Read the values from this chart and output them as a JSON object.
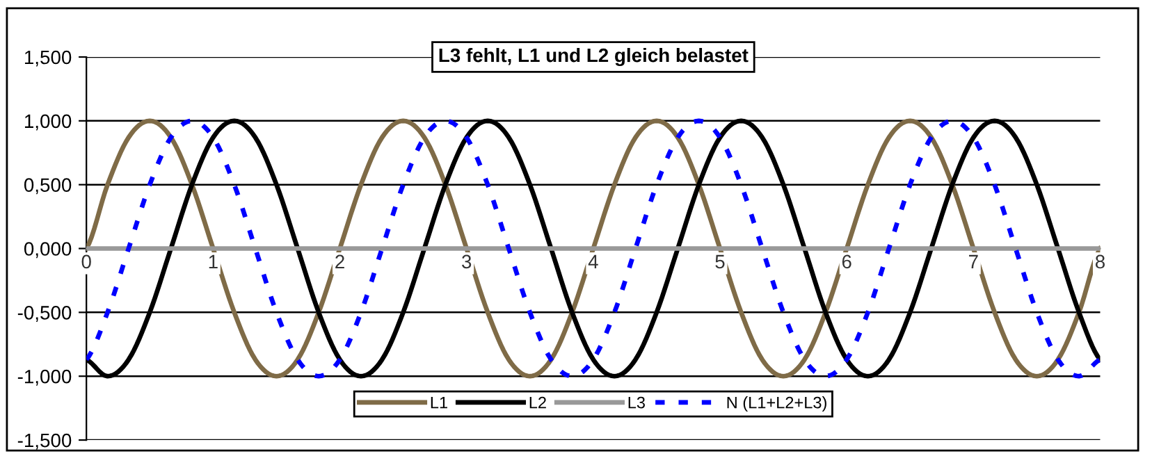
{
  "chart_data": {
    "type": "line",
    "title": "L3 fehlt, L1 und L2 gleich belastet",
    "x": [
      0,
      0.167,
      0.333,
      0.5,
      0.667,
      0.833,
      1,
      1.167,
      1.333,
      1.5,
      1.667,
      1.833,
      2,
      2.167,
      2.333,
      2.5,
      2.667,
      2.833,
      3,
      3.167,
      3.333,
      3.5,
      3.667,
      3.833,
      4,
      4.167,
      4.333,
      4.5,
      4.667,
      4.833,
      5,
      5.167,
      5.333,
      5.5,
      5.667,
      5.833,
      6,
      6.167,
      6.333,
      6.5,
      6.667,
      6.833,
      7,
      7.167,
      7.333,
      7.5,
      7.667,
      7.833,
      8
    ],
    "series": [
      {
        "name": "L1",
        "color": "#7f6b47",
        "line_style": "solid",
        "values": [
          0,
          0.5,
          0.87,
          1,
          0.87,
          0.5,
          0,
          -0.5,
          -0.87,
          -1,
          -0.87,
          -0.5,
          0,
          0.5,
          0.87,
          1,
          0.87,
          0.5,
          0,
          -0.5,
          -0.87,
          -1,
          -0.87,
          -0.5,
          0,
          0.5,
          0.87,
          1,
          0.87,
          0.5,
          0,
          -0.5,
          -0.87,
          -1,
          -0.87,
          -0.5,
          0,
          0.5,
          0.87,
          1,
          0.87,
          0.5,
          0,
          -0.5,
          -0.87,
          -1,
          -0.87,
          -0.5,
          0
        ]
      },
      {
        "name": "L2",
        "color": "#000000",
        "line_style": "solid",
        "values": [
          -0.87,
          -1,
          -0.87,
          -0.5,
          0,
          0.5,
          0.87,
          1,
          0.87,
          0.5,
          0,
          -0.5,
          -0.87,
          -1,
          -0.87,
          -0.5,
          0,
          0.5,
          0.87,
          1,
          0.87,
          0.5,
          0,
          -0.5,
          -0.87,
          -1,
          -0.87,
          -0.5,
          0,
          0.5,
          0.87,
          1,
          0.87,
          0.5,
          0,
          -0.5,
          -0.87,
          -1,
          -0.87,
          -0.5,
          0,
          0.5,
          0.87,
          1,
          0.87,
          0.5,
          0,
          -0.5,
          -0.87
        ]
      },
      {
        "name": "L3",
        "color": "#999999",
        "line_style": "solid",
        "values": [
          0,
          0,
          0,
          0,
          0,
          0,
          0,
          0,
          0,
          0,
          0,
          0,
          0,
          0,
          0,
          0,
          0,
          0,
          0,
          0,
          0,
          0,
          0,
          0,
          0,
          0,
          0,
          0,
          0,
          0,
          0,
          0,
          0,
          0,
          0,
          0,
          0,
          0,
          0,
          0,
          0,
          0,
          0,
          0,
          0,
          0,
          0,
          0,
          0
        ]
      },
      {
        "name": "N (L1+L2+L3)",
        "color": "#0000ff",
        "line_style": "dashed",
        "values": [
          -0.87,
          -0.5,
          0,
          0.5,
          0.87,
          1,
          0.87,
          0.5,
          0,
          -0.5,
          -0.87,
          -1,
          -0.87,
          -0.5,
          0,
          0.5,
          0.87,
          1,
          0.87,
          0.5,
          0,
          -0.5,
          -0.87,
          -1,
          -0.87,
          -0.5,
          0,
          0.5,
          0.87,
          1,
          0.87,
          0.5,
          0,
          -0.5,
          -0.87,
          -1,
          -0.87,
          -0.5,
          0,
          0.5,
          0.87,
          1,
          0.87,
          0.5,
          0,
          -0.5,
          -0.87,
          -1,
          -0.87
        ]
      }
    ],
    "xlim": [
      0,
      8
    ],
    "xticks": [
      0,
      1,
      2,
      3,
      4,
      5,
      6,
      7,
      8
    ],
    "ylim": [
      -1.5,
      1.5
    ],
    "yticks": [
      {
        "value": -1.5,
        "label": "-1,500"
      },
      {
        "value": -1,
        "label": "-1,000"
      },
      {
        "value": -0.5,
        "label": "-0,500"
      },
      {
        "value": 0,
        "label": "0,000"
      },
      {
        "value": 0.5,
        "label": "0,500"
      },
      {
        "value": 1,
        "label": "1,000"
      },
      {
        "value": 1.5,
        "label": "1,500"
      }
    ],
    "grid": "y",
    "legend": "bottom",
    "marker": "none"
  }
}
